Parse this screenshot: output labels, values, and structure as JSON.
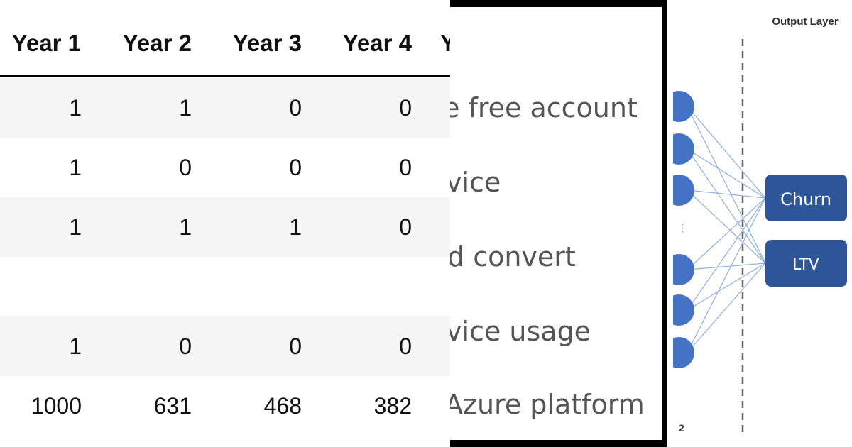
{
  "table": {
    "headers": [
      "Year 1",
      "Year 2",
      "Year 3",
      "Year 4",
      "Y"
    ],
    "rows": [
      [
        "1",
        "1",
        "0",
        "0"
      ],
      [
        "1",
        "0",
        "0",
        "0"
      ],
      [
        "1",
        "1",
        "1",
        "0"
      ],
      [
        "1",
        "0",
        "0",
        "0"
      ],
      [
        "1000",
        "631",
        "468",
        "382"
      ]
    ]
  },
  "slide": {
    "lines": [
      "e free account",
      "vice",
      "d convert",
      "vice usage",
      "Azure platform"
    ]
  },
  "diagram": {
    "title": "Output Layer",
    "outputs": [
      "Churn",
      "LTV"
    ],
    "page_number": "2"
  }
}
